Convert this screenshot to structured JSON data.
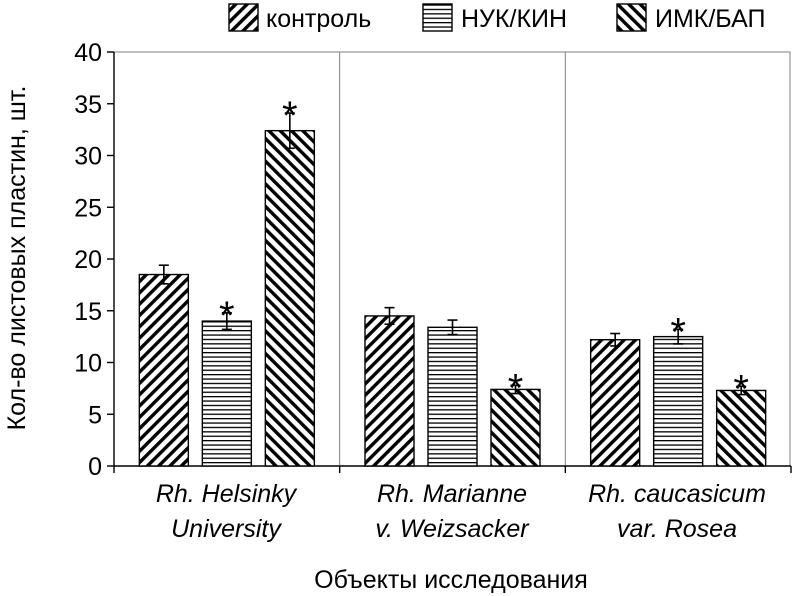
{
  "chart_data": {
    "type": "bar",
    "ylabel": "Кол-во листовых пластин, шт.",
    "xlabel": "Объекты исследования",
    "ylim": [
      0,
      40
    ],
    "yticks": [
      0,
      5,
      10,
      15,
      20,
      25,
      30,
      35,
      40
    ],
    "grid": "vertical separators between categories",
    "legend_position": "top",
    "categories": [
      {
        "line1": "Rh. Helsinky",
        "line2": "University"
      },
      {
        "line1": "Rh. Marianne",
        "line2": "v. Weizsacker"
      },
      {
        "line1": "Rh. caucasicum",
        "line2": "var. Rosea"
      }
    ],
    "series": [
      {
        "name": "контроль",
        "pattern": "diag-up",
        "values": [
          18.5,
          14.5,
          12.2
        ],
        "errors": [
          0.9,
          0.8,
          0.6
        ],
        "significant": [
          false,
          false,
          false
        ]
      },
      {
        "name": "НУК/КИН",
        "pattern": "horizontal",
        "values": [
          14.0,
          13.4,
          12.5
        ],
        "errors": [
          0.8,
          0.7,
          0.7
        ],
        "significant": [
          true,
          false,
          true
        ]
      },
      {
        "name": "ИМК/БАП",
        "pattern": "diag-down",
        "values": [
          32.4,
          7.4,
          7.3
        ],
        "errors": [
          1.7,
          0.4,
          0.4
        ],
        "significant": [
          true,
          true,
          true
        ]
      }
    ],
    "significance_marker": "*",
    "colors": {
      "ink": "#000000",
      "background": "#ffffff",
      "grid": "#808080"
    }
  }
}
